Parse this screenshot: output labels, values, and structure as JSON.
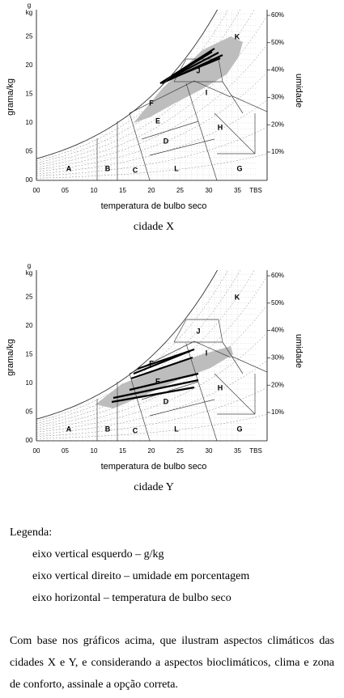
{
  "figures": [
    {
      "y_unit_top": "g",
      "y_unit_bottom": "kg",
      "y_title": "grama/kg",
      "y_ticks": [
        "00",
        "05",
        "10",
        "15",
        "20",
        "25"
      ],
      "x_ticks": [
        "00",
        "05",
        "10",
        "15",
        "20",
        "25",
        "30",
        "35",
        "TBS"
      ],
      "x_title": "temperatura de bulbo seco",
      "rh_ticks": [
        "10%",
        "20%",
        "30%",
        "40%",
        "50%",
        "60%"
      ],
      "right_title": "umidade",
      "zones": [
        "A",
        "B",
        "C",
        "D",
        "E",
        "F",
        "G",
        "H",
        "I",
        "J",
        "K",
        "L"
      ],
      "caption": "cidade X"
    },
    {
      "y_unit_top": "g",
      "y_unit_bottom": "kg",
      "y_title": "grama/kg",
      "y_ticks": [
        "00",
        "05",
        "10",
        "15",
        "20",
        "25"
      ],
      "x_ticks": [
        "00",
        "05",
        "10",
        "15",
        "20",
        "25",
        "30",
        "35",
        "TBS"
      ],
      "x_title": "temperatura de bulbo seco",
      "rh_ticks": [
        "10%",
        "20%",
        "30%",
        "40%",
        "50%",
        "60%"
      ],
      "right_title": "umidade",
      "zones": [
        "A",
        "B",
        "C",
        "D",
        "E",
        "F",
        "G",
        "H",
        "I",
        "J",
        "K",
        "L"
      ],
      "caption": "cidade Y"
    }
  ],
  "legend": {
    "title": "Legenda:",
    "items": [
      "eixo vertical esquerdo – g/kg",
      "eixo vertical direito – umidade em porcentagem",
      "eixo horizontal – temperatura de bulbo seco"
    ]
  },
  "paragraph": "Com base nos gráficos acima, que ilustram aspectos climáticos das cidades X e Y, e considerando a aspectos bioclimáticos, clima e zona de conforto, assinale a opção correta."
}
